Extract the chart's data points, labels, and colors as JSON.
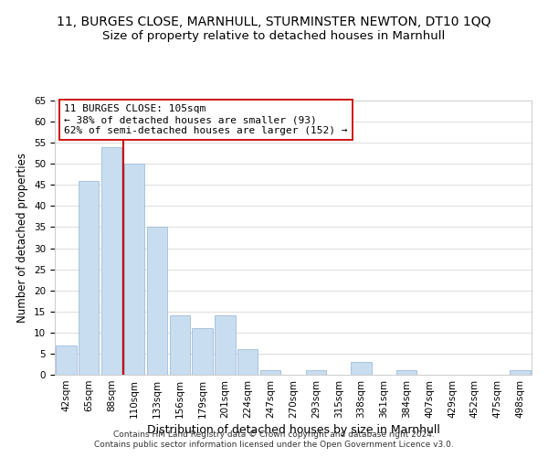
{
  "title": "11, BURGES CLOSE, MARNHULL, STURMINSTER NEWTON, DT10 1QQ",
  "subtitle": "Size of property relative to detached houses in Marnhull",
  "xlabel": "Distribution of detached houses by size in Marnhull",
  "ylabel": "Number of detached properties",
  "bar_labels": [
    "42sqm",
    "65sqm",
    "88sqm",
    "110sqm",
    "133sqm",
    "156sqm",
    "179sqm",
    "201sqm",
    "224sqm",
    "247sqm",
    "270sqm",
    "293sqm",
    "315sqm",
    "338sqm",
    "361sqm",
    "384sqm",
    "407sqm",
    "429sqm",
    "452sqm",
    "475sqm",
    "498sqm"
  ],
  "bar_values": [
    7,
    46,
    54,
    50,
    35,
    14,
    11,
    14,
    6,
    1,
    0,
    1,
    0,
    3,
    0,
    1,
    0,
    0,
    0,
    0,
    1
  ],
  "bar_color": "#c8ddf0",
  "bar_edge_color": "#a0bcd8",
  "vline_index": 3,
  "vline_color": "#cc0000",
  "ylim": [
    0,
    65
  ],
  "yticks": [
    0,
    5,
    10,
    15,
    20,
    25,
    30,
    35,
    40,
    45,
    50,
    55,
    60,
    65
  ],
  "annotation_title": "11 BURGES CLOSE: 105sqm",
  "annotation_line1": "← 38% of detached houses are smaller (93)",
  "annotation_line2": "62% of semi-detached houses are larger (152) →",
  "footer1": "Contains HM Land Registry data © Crown copyright and database right 2024.",
  "footer2": "Contains public sector information licensed under the Open Government Licence v3.0.",
  "annotation_box_color": "#ffffff",
  "annotation_box_edge": "#cc0000",
  "title_fontsize": 10,
  "subtitle_fontsize": 9.5,
  "xlabel_fontsize": 9,
  "ylabel_fontsize": 8.5,
  "tick_fontsize": 7.5,
  "annotation_fontsize": 8,
  "footer_fontsize": 6.5
}
